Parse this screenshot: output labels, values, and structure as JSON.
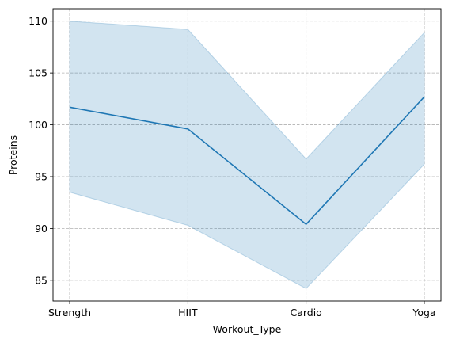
{
  "chart_data": {
    "type": "line",
    "title": "",
    "xlabel": "Workout_Type",
    "ylabel": "Proteins",
    "categories": [
      "Strength",
      "HIIT",
      "Cardio",
      "Yoga"
    ],
    "series": [
      {
        "values": [
          101.7,
          99.6,
          90.4,
          102.7
        ],
        "ci_lower": [
          93.5,
          90.3,
          84.2,
          96.2
        ],
        "ci_upper": [
          110.0,
          109.2,
          96.7,
          108.9
        ]
      }
    ],
    "ylim": [
      83,
      111.2
    ],
    "yticks": [
      85,
      90,
      95,
      100,
      105,
      110
    ],
    "grid": true,
    "colors": {
      "line": "#1f77b4",
      "band": "#1f77b4",
      "grid": "#b0b0b0"
    }
  }
}
